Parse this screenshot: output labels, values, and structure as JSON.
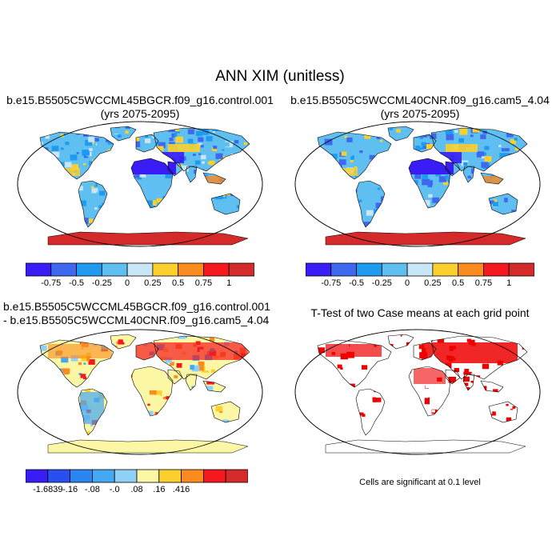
{
  "figure": {
    "main_title": "ANN XIM (unitless)",
    "panel1": {
      "title_line1": "b.e15.B5505C5WCCML45BGCR.f09_g16.control.001",
      "title_line2": "(yrs 2075-2095)"
    },
    "panel2": {
      "title_line1": "b.e15.B5505C5WCCML40CNR.f09_g16.cam5_4.04",
      "title_line2": "(yrs 2075-2095)"
    },
    "panel3": {
      "title_line1": "b.e15.B5505C5WCCML45BGCR.f09_g16.control.001",
      "title_line2": "- b.e15.B5505C5WCCML40CNR.f09_g16.cam5_4.04"
    },
    "panel4": {
      "title_line1": "T-Test of two Case means at each grid point",
      "note": "Cells are significant at 0.1 level"
    }
  },
  "colorbar_top": {
    "colors": [
      "#3a1df5",
      "#3e68f0",
      "#1e9af0",
      "#5fbff0",
      "#c8e6f8",
      "#fbd02e",
      "#fb8b1e",
      "#f5181e",
      "#d42a2a"
    ],
    "labels": [
      "-0.75",
      "-0.5",
      "-0.25",
      "0",
      "0.25",
      "0.5",
      "0.75",
      "1"
    ]
  },
  "colorbar_diff": {
    "colors": [
      "#3a1df5",
      "#2a4ff0",
      "#2b86f2",
      "#45a8f2",
      "#8fd0f7",
      "#fbf7a5",
      "#fbd02e",
      "#fb8b1e",
      "#f5181e",
      "#d42a2a"
    ],
    "labels": [
      "-1.6839",
      "-.16",
      "-.08",
      "-.0",
      "0.08",
      "0.16",
      ".416"
    ],
    "label_display": [
      "-1.6839",
      "-.16",
      "-.08",
      "-.0",
      ".08",
      ".16",
      ".416"
    ]
  },
  "map_colors": {
    "ocean": "#ffffff",
    "antarctica_top": "#d42a2a",
    "antarctica_diff": "#fbf7a5",
    "significant": "#ee0000"
  }
}
